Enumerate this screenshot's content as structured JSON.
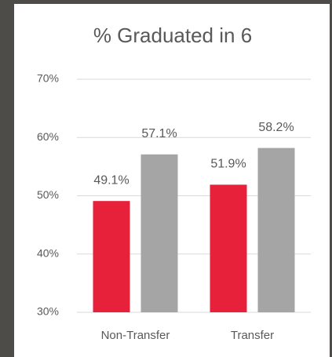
{
  "chart_data": {
    "type": "bar",
    "title": "% Graduated in 6",
    "categories": [
      "Non-Transfer",
      "Transfer"
    ],
    "series": [
      {
        "color": "#e8213b",
        "values": [
          49.1,
          51.9
        ],
        "value_labels": [
          "49.1%",
          "51.9%"
        ]
      },
      {
        "color": "#a5a5a5",
        "values": [
          57.1,
          58.2
        ],
        "value_labels": [
          "57.1%",
          "58.2%"
        ]
      }
    ],
    "ylim": [
      30,
      70
    ],
    "yticks": [
      {
        "value": 30,
        "label": "30%"
      },
      {
        "value": 40,
        "label": "40%"
      },
      {
        "value": 50,
        "label": "50%"
      },
      {
        "value": 60,
        "label": "60%"
      },
      {
        "value": 70,
        "label": "70%"
      }
    ],
    "grid": true
  }
}
